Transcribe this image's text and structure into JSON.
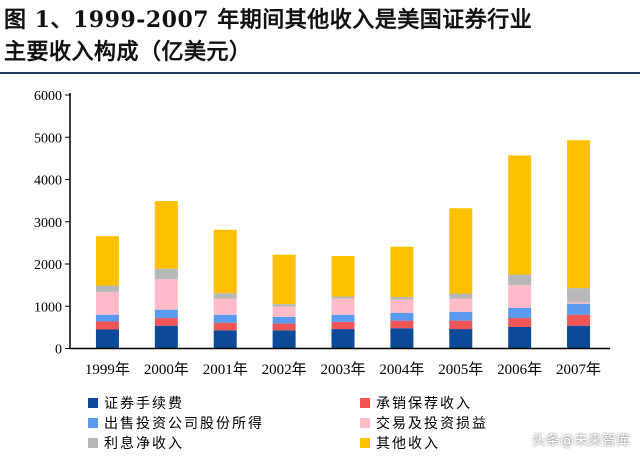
{
  "title_lines": [
    "图 1、1999-2007 年期间其他收入是美国证券行业",
    "主要收入构成（亿美元）"
  ],
  "watermark": "头条@未来智库",
  "chart_data": {
    "type": "bar",
    "stacked": true,
    "categories": [
      "1999年",
      "2000年",
      "2001年",
      "2002年",
      "2003年",
      "2004年",
      "2005年",
      "2006年",
      "2007年"
    ],
    "ylim": [
      0,
      6000
    ],
    "yticks": [
      0,
      1000,
      2000,
      3000,
      4000,
      5000,
      6000
    ],
    "grid": false,
    "legend": "bottom",
    "series": [
      {
        "name": "证券手续费",
        "color": "#0b4a99",
        "values": [
          450,
          540,
          430,
          430,
          460,
          480,
          460,
          510,
          540
        ]
      },
      {
        "name": "承销保荐收入",
        "color": "#f05454",
        "values": [
          190,
          180,
          180,
          160,
          170,
          180,
          200,
          210,
          260
        ]
      },
      {
        "name": "出售投资公司股份所得",
        "color": "#5b9bef",
        "values": [
          160,
          200,
          190,
          160,
          170,
          180,
          210,
          240,
          260
        ]
      },
      {
        "name": "交易及投资损益",
        "color": "#ffbcc8",
        "values": [
          540,
          720,
          380,
          240,
          380,
          320,
          310,
          540,
          30
        ]
      },
      {
        "name": "利息净收入",
        "color": "#b8b8b8",
        "values": [
          150,
          250,
          130,
          60,
          50,
          60,
          120,
          250,
          340
        ]
      },
      {
        "name": "其他收入",
        "color": "#ffc000",
        "values": [
          1170,
          1600,
          1500,
          1170,
          960,
          1190,
          2020,
          2820,
          3500
        ]
      }
    ]
  }
}
